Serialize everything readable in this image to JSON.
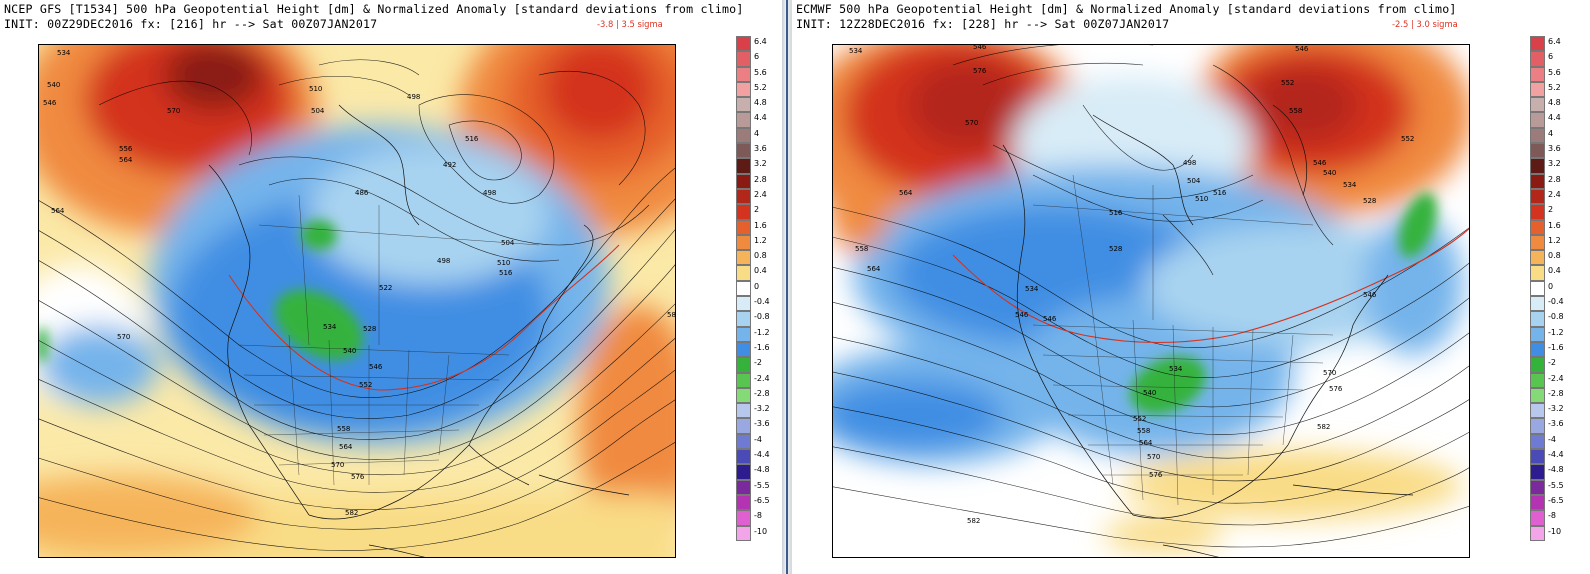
{
  "panels": [
    {
      "title_line1": "NCEP GFS [T1534] 500 hPa Geopotential Height [dm] & Normalized Anomaly [standard deviations from climo]",
      "title_line2": "INIT: 00Z29DEC2016 fx: [216] hr --> Sat 00Z07JAN2017",
      "sigma_range": "-3.8 | 3.5 sigma",
      "contour_labels": [
        "534",
        "540",
        "546",
        "570",
        "564",
        "556",
        "564",
        "510",
        "504",
        "498",
        "516",
        "498",
        "504",
        "510",
        "516",
        "522",
        "528",
        "534",
        "540",
        "546",
        "552",
        "558",
        "564",
        "570",
        "576",
        "582",
        "570",
        "58",
        "498",
        "492",
        "486"
      ]
    },
    {
      "title_line1": "ECMWF 500 hPa Geopotential Height [dm] & Normalized Anomaly [standard deviations from climo]",
      "title_line2": "INIT: 12Z28DEC2016 fx: [228] hr --> Sat 00Z07JAN2017",
      "sigma_range": "-2.5 | 3.0 sigma",
      "contour_labels": [
        "534",
        "546",
        "576",
        "570",
        "564",
        "558",
        "564",
        "546",
        "552",
        "558",
        "546",
        "540",
        "534",
        "528",
        "516",
        "528",
        "534",
        "510",
        "504",
        "498",
        "516",
        "546",
        "534",
        "540",
        "546",
        "552",
        "558",
        "564",
        "570",
        "576",
        "582",
        "582",
        "570",
        "576",
        "552",
        "546"
      ]
    }
  ],
  "legend": {
    "labels": [
      "6.4",
      "6",
      "5.6",
      "5.2",
      "4.8",
      "4.4",
      "4",
      "3.6",
      "3.2",
      "2.8",
      "2.4",
      "2",
      "1.6",
      "1.2",
      "0.8",
      "0.4",
      "0",
      "-0.4",
      "-0.8",
      "-1.2",
      "-1.6",
      "-2",
      "-2.4",
      "-2.8",
      "-3.2",
      "-3.6",
      "-4",
      "-4.4",
      "-4.8",
      "-5.5",
      "-6.5",
      "-8",
      "-10"
    ],
    "colors": [
      "#d9404a",
      "#e35f66",
      "#ec7f83",
      "#f1a1a2",
      "#c7afae",
      "#b89a99",
      "#9c7c7a",
      "#7d5a57",
      "#5e1a14",
      "#8a1a12",
      "#b3261a",
      "#d3331f",
      "#e5602c",
      "#f08a3f",
      "#f6b45a",
      "#f9dc86",
      "#ffffff",
      "#d8ecf7",
      "#a8d3f0",
      "#74b4eb",
      "#3f8ee3",
      "#34b23c",
      "#58c550",
      "#85da78",
      "#b7c8ec",
      "#9aa8e2",
      "#6f7ad2",
      "#4b4bb8",
      "#2c1c8f",
      "#7a2a9c",
      "#b333b3",
      "#e060d2",
      "#f2a5e8"
    ]
  }
}
